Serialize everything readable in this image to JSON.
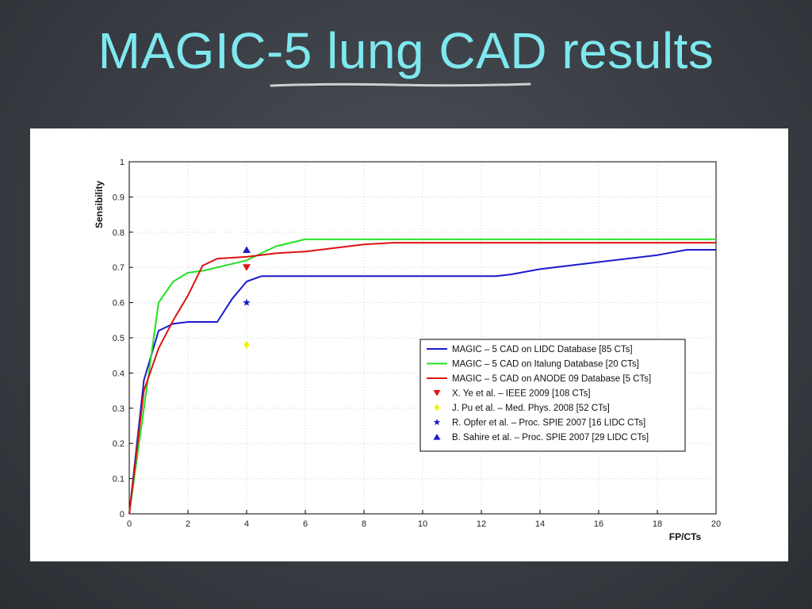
{
  "slide": {
    "title": "MAGIC-5 lung CAD results"
  },
  "colors": {
    "title": "#7ee8ef",
    "blue": "#1a1acc",
    "green": "#22e022",
    "red": "#dd1111",
    "yellow": "#f2f200",
    "grid": "#cfcfcf"
  },
  "chart_data": {
    "type": "line",
    "title": "",
    "xlabel": "FP/CTs",
    "ylabel": "Sensibility",
    "xlim": [
      0,
      20
    ],
    "ylim": [
      0,
      1
    ],
    "xticks": [
      0,
      2,
      4,
      6,
      8,
      10,
      12,
      14,
      16,
      18,
      20
    ],
    "yticks": [
      0,
      0.1,
      0.2,
      0.3,
      0.4,
      0.5,
      0.6,
      0.7,
      0.8,
      0.9,
      1
    ],
    "grid": true,
    "legend_position": "lower-right",
    "series": [
      {
        "name": "MAGIC – 5 CAD on LIDC Database [85 CTs]",
        "kind": "line",
        "color": "#1a1acc",
        "x": [
          0,
          0.5,
          1,
          1.5,
          2,
          2.5,
          3,
          3.5,
          4,
          4.5,
          5,
          6,
          8,
          10,
          12,
          12.5,
          13,
          14,
          16,
          18,
          19,
          20
        ],
        "y": [
          0,
          0.38,
          0.52,
          0.54,
          0.545,
          0.545,
          0.545,
          0.61,
          0.66,
          0.675,
          0.675,
          0.675,
          0.675,
          0.675,
          0.675,
          0.675,
          0.68,
          0.695,
          0.715,
          0.735,
          0.75,
          0.75
        ]
      },
      {
        "name": "MAGIC – 5 CAD on Italung Database [20 CTs]",
        "kind": "line",
        "color": "#22e022",
        "x": [
          0,
          0.5,
          1,
          1.5,
          2,
          2.5,
          3,
          3.5,
          4,
          4.5,
          5,
          6,
          8,
          10,
          12,
          14,
          16,
          18,
          20
        ],
        "y": [
          0,
          0.3,
          0.6,
          0.66,
          0.685,
          0.69,
          0.7,
          0.71,
          0.72,
          0.74,
          0.76,
          0.78,
          0.78,
          0.78,
          0.78,
          0.78,
          0.78,
          0.78,
          0.78
        ]
      },
      {
        "name": "MAGIC – 5 CAD on ANODE 09 Database [5 CTs]",
        "kind": "line",
        "color": "#dd1111",
        "x": [
          0,
          0.5,
          1,
          1.5,
          2,
          2.5,
          3,
          4,
          5,
          6,
          7,
          8,
          9,
          10,
          12,
          14,
          16,
          18,
          20
        ],
        "y": [
          0,
          0.35,
          0.47,
          0.55,
          0.62,
          0.705,
          0.725,
          0.73,
          0.74,
          0.745,
          0.755,
          0.765,
          0.77,
          0.77,
          0.77,
          0.77,
          0.77,
          0.77,
          0.77
        ]
      },
      {
        "name": "X. Ye et al. – IEEE 2009 [108 CTs]",
        "kind": "point",
        "marker": "triangle-down",
        "color": "#dd1111",
        "x": [
          4
        ],
        "y": [
          0.7
        ]
      },
      {
        "name": "J. Pu et al. – Med. Phys. 2008 [52 CTs]",
        "kind": "point",
        "marker": "diamond",
        "color": "#f2f200",
        "x": [
          4
        ],
        "y": [
          0.48
        ]
      },
      {
        "name": "R. Opfer et al. – Proc. SPIE 2007 [16 LIDC CTs]",
        "kind": "point",
        "marker": "star",
        "color": "#1a1acc",
        "x": [
          4
        ],
        "y": [
          0.6
        ]
      },
      {
        "name": "B. Sahire et al. – Proc. SPIE 2007 [29 LIDC CTs]",
        "kind": "point",
        "marker": "triangle-up",
        "color": "#1a1acc",
        "x": [
          4
        ],
        "y": [
          0.75
        ]
      }
    ]
  }
}
